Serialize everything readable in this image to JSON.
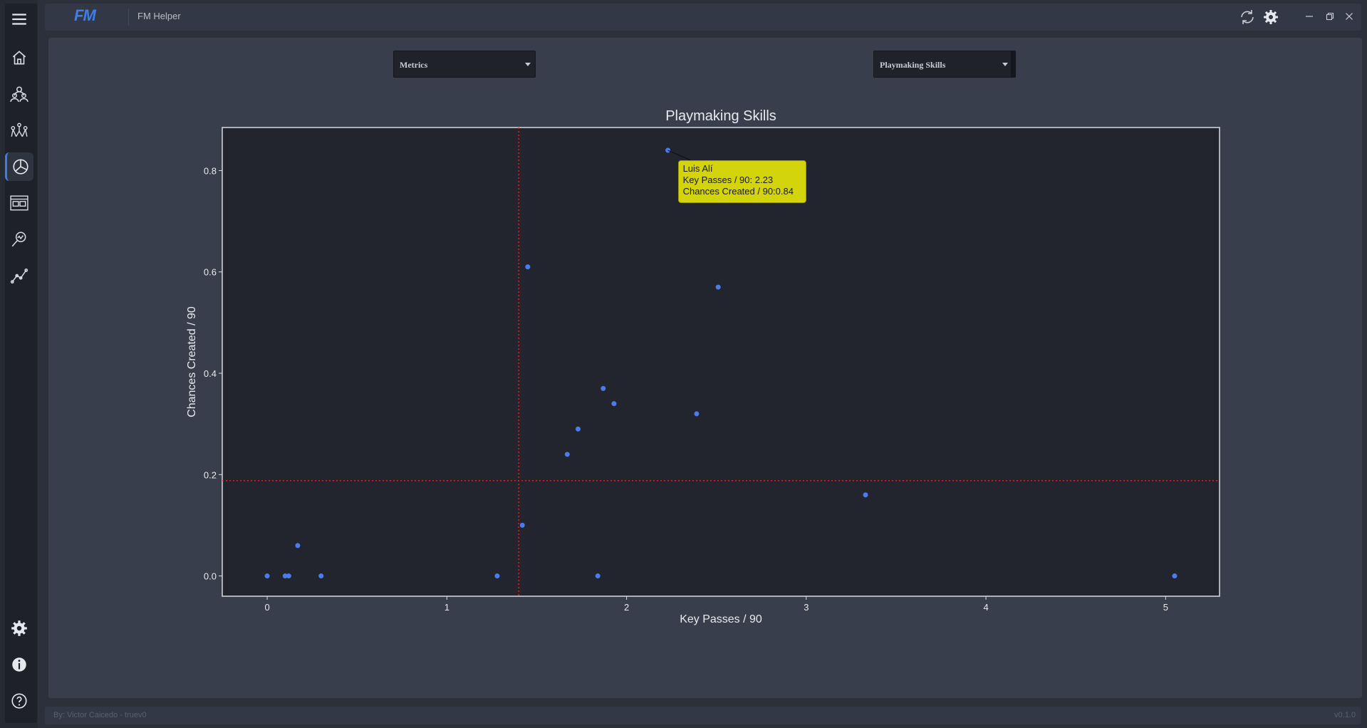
{
  "app": {
    "logo": "FM",
    "title": "FM Helper"
  },
  "sidebar": {
    "items": [
      {
        "name": "menu-icon"
      },
      {
        "name": "home-icon"
      },
      {
        "name": "players-icon"
      },
      {
        "name": "squad-network-icon"
      },
      {
        "name": "pie-chart-icon",
        "active": true
      },
      {
        "name": "compare-icon"
      },
      {
        "name": "scout-icon"
      },
      {
        "name": "line-chart-icon"
      },
      {
        "name": "settings-icon"
      },
      {
        "name": "info-icon"
      },
      {
        "name": "help-icon"
      }
    ]
  },
  "toolbar": {
    "icons": [
      "refresh-icon",
      "gear-icon"
    ],
    "window_buttons": [
      "minimize-icon",
      "restore-icon",
      "close-icon"
    ]
  },
  "filters": {
    "category": "Metrics",
    "chart": "Playmaking Skills"
  },
  "chart_data": {
    "type": "scatter",
    "title": "Playmaking Skills",
    "xlabel": "Key Passes / 90",
    "ylabel": "Chances Created / 90",
    "xlim": [
      -0.25,
      5.3
    ],
    "ylim": [
      -0.04,
      0.885
    ],
    "xticks": [
      0,
      1,
      2,
      3,
      4,
      5
    ],
    "yticks": [
      0.0,
      0.2,
      0.4,
      0.6,
      0.8
    ],
    "ytick_labels": [
      "0.0",
      "0.2",
      "0.4",
      "0.6",
      "0.8"
    ],
    "points": [
      {
        "x": 0.0,
        "y": 0.0
      },
      {
        "x": 0.1,
        "y": 0.0
      },
      {
        "x": 0.12,
        "y": 0.0
      },
      {
        "x": 0.3,
        "y": 0.0
      },
      {
        "x": 0.17,
        "y": 0.06
      },
      {
        "x": 1.28,
        "y": 0.0
      },
      {
        "x": 1.42,
        "y": 0.1
      },
      {
        "x": 1.45,
        "y": 0.61
      },
      {
        "x": 1.67,
        "y": 0.24
      },
      {
        "x": 1.73,
        "y": 0.29
      },
      {
        "x": 1.84,
        "y": 0.0
      },
      {
        "x": 1.87,
        "y": 0.37
      },
      {
        "x": 1.93,
        "y": 0.34
      },
      {
        "x": 2.23,
        "y": 0.84
      },
      {
        "x": 2.39,
        "y": 0.32
      },
      {
        "x": 2.51,
        "y": 0.57
      },
      {
        "x": 3.33,
        "y": 0.16
      },
      {
        "x": 5.05,
        "y": 0.0
      }
    ],
    "mean_x": 1.4,
    "mean_y": 0.188,
    "point_color": "#4a7cf0",
    "mean_line_color": "#e01e1e",
    "grid": false,
    "tooltip": {
      "player": "Luis Alí",
      "line2": "Key Passes / 90: 2.23",
      "line3": "Chances Created / 90:0.84",
      "x": 2.23,
      "y": 0.84
    }
  },
  "footer": {
    "credit": "By: Victor Caicedo - truev0",
    "version": "v0.1.0"
  },
  "colors": {
    "accent": "#3f7ee8",
    "tooltip_bg": "#d4d40c"
  }
}
